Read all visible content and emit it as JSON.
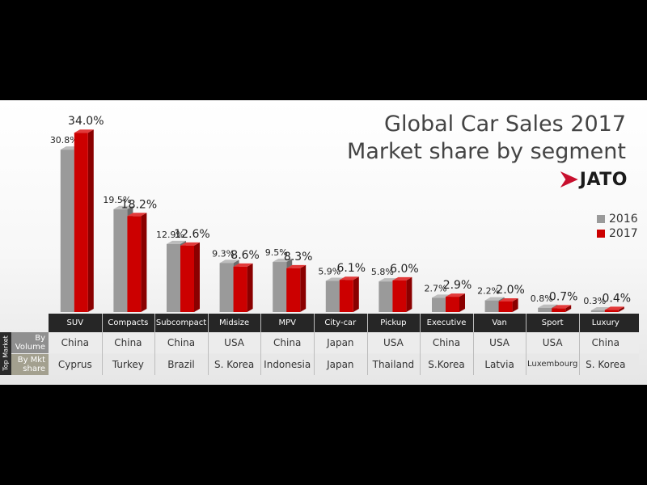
{
  "chart_data": {
    "type": "bar",
    "title": "Global Car Sales 2017",
    "subtitle": "Market share by segment",
    "categories": [
      "SUV",
      "Compacts",
      "Subcompact",
      "Midsize",
      "MPV",
      "City-car",
      "Pickup",
      "Executive",
      "Van",
      "Sport",
      "Luxury"
    ],
    "series": [
      {
        "name": "2016",
        "color": "#9a9a9a",
        "values": [
          30.8,
          19.5,
          12.9,
          9.3,
          9.5,
          5.9,
          5.8,
          2.7,
          2.2,
          0.8,
          0.3
        ],
        "labels": [
          "30.8%",
          "19.5%",
          "12.9%",
          "9.3%",
          "9.5%",
          "5.9%",
          "5.8%",
          "2.7%",
          "2.2%",
          "0.8%",
          "0.3%"
        ]
      },
      {
        "name": "2017",
        "color": "#cc0000",
        "values": [
          34.0,
          18.2,
          12.6,
          8.6,
          8.3,
          6.1,
          6.0,
          2.9,
          2.0,
          0.7,
          0.4
        ],
        "labels": [
          "34.0%",
          "18.2%",
          "12.6%",
          "8.6%",
          "8.3%",
          "6.1%",
          "6.0%",
          "2.9%",
          "2.0%",
          "0.7%",
          "0.4%"
        ]
      }
    ],
    "ylim": [
      0,
      36
    ],
    "legend_position": "right",
    "grid": false
  },
  "logo": {
    "text": "JATO"
  },
  "legend": [
    "2016",
    "2017"
  ],
  "table": {
    "side_label": "Top Market",
    "row_label_volume": "By Volume",
    "row_label_share": "By Mkt share",
    "by_volume": [
      "China",
      "China",
      "China",
      "USA",
      "China",
      "Japan",
      "USA",
      "China",
      "USA",
      "USA",
      "China"
    ],
    "by_share": [
      "Cyprus",
      "Turkey",
      "Brazil",
      "S. Korea",
      "Indonesia",
      "Japan",
      "Thailand",
      "S.Korea",
      "Latvia",
      "Luxembourg",
      "S. Korea"
    ]
  }
}
